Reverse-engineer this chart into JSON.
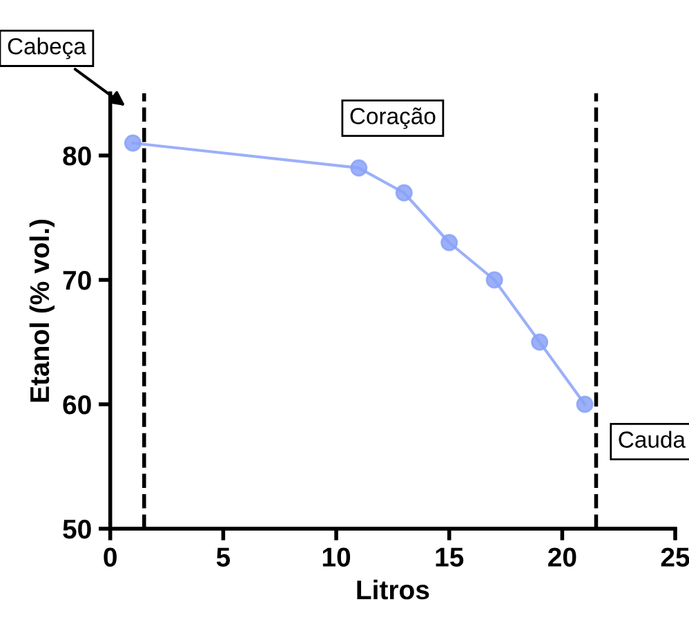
{
  "chart_data": {
    "type": "line",
    "xlabel": "Litros",
    "ylabel": "Etanol (% vol.)",
    "x": [
      1,
      11,
      13,
      15,
      17,
      19,
      21
    ],
    "series": [
      {
        "color": "#8aa2f8",
        "values": [
          81,
          79,
          77,
          73,
          70,
          65,
          60
        ]
      }
    ],
    "marker": "circle",
    "line_style": "solid",
    "grid": false,
    "xlim": [
      0,
      25
    ],
    "xticks": [
      0,
      5,
      10,
      15,
      20,
      25
    ],
    "ylim": [
      50,
      85
    ],
    "yticks": [
      50,
      60,
      70,
      80
    ],
    "ref_lines": [
      {
        "axis": "x",
        "value": 1.5,
        "color": "#000000",
        "line_style": "dashed"
      },
      {
        "axis": "x",
        "value": 21.5,
        "color": "#000000",
        "line_style": "dashed"
      }
    ],
    "annotations": [
      "Cabeça",
      "Coração",
      "Cauda"
    ]
  }
}
